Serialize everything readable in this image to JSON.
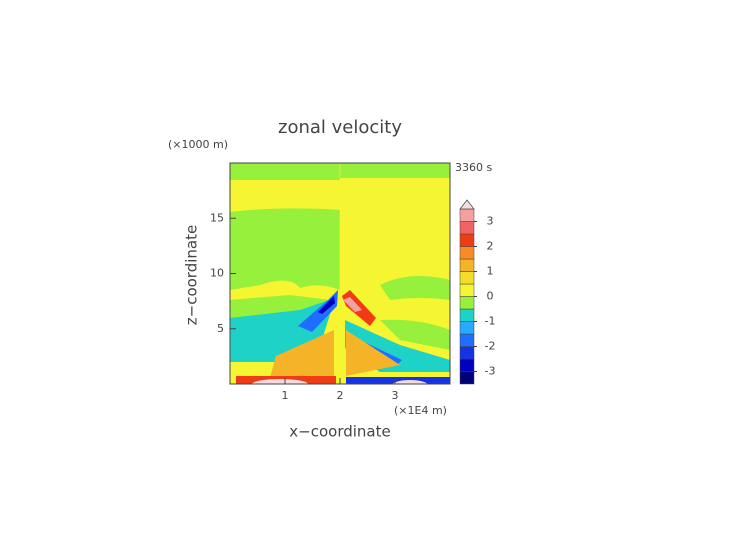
{
  "chart_data": {
    "type": "contour",
    "title": "zonal velocity",
    "x_label": "x−coordinate",
    "y_label": "z−coordinate",
    "x_unit": "(×1E4 m)",
    "y_unit": "(×1000 m)",
    "time_label": "3360 s",
    "xlim": [
      0,
      4
    ],
    "ylim": [
      0,
      20
    ],
    "xticks": [
      1,
      2,
      3
    ],
    "yticks": [
      5,
      10,
      15
    ],
    "colorbar": {
      "levels": [
        -3.5,
        -3,
        -2.5,
        -2,
        -1.5,
        -1,
        -0.5,
        0,
        0.5,
        1,
        1.5,
        2,
        2.5,
        3,
        3.5
      ],
      "colors": [
        "#00007a",
        "#0000c0",
        "#1432e6",
        "#1e6eff",
        "#28aaff",
        "#1ed2c8",
        "#96f03c",
        "#f5f532",
        "#f5dc28",
        "#f5b428",
        "#f58c28",
        "#f03c14",
        "#f06464",
        "#f5a0a0"
      ],
      "ticks": [
        -3,
        -2,
        -1,
        0,
        1,
        2,
        3
      ],
      "over_color": "#f5dcdc"
    }
  }
}
